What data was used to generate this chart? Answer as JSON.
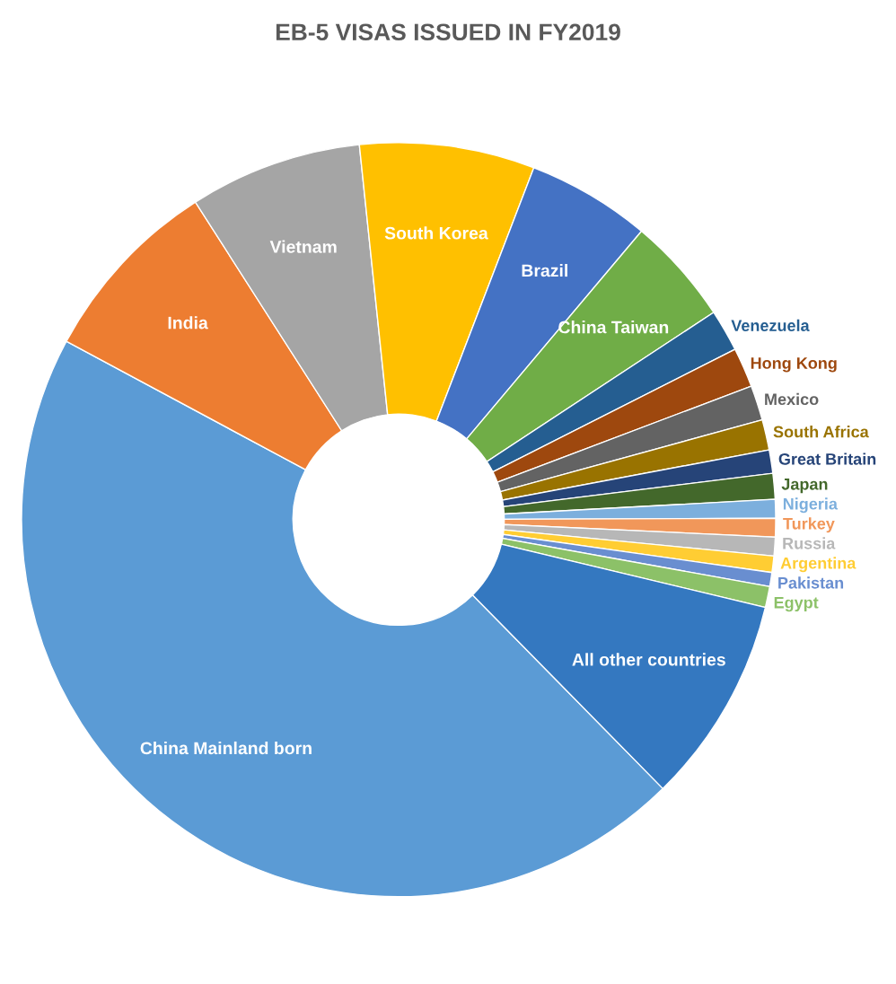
{
  "chart_data": {
    "type": "donut",
    "title": "EB-5 VISAS ISSUED IN FY2019",
    "categories": [
      "China Mainland born",
      "India",
      "Vietnam",
      "South Korea",
      "Brazil",
      "China Taiwan",
      "Venezuela",
      "Hong Kong",
      "Mexico",
      "South Africa",
      "Great Britain",
      "Japan",
      "Nigeria",
      "Turkey",
      "Russia",
      "Argentina",
      "Pakistan",
      "Egypt",
      "All other countries"
    ],
    "values": [
      45.2,
      8.1,
      7.4,
      7.5,
      5.3,
      4.6,
      1.8,
      1.7,
      1.5,
      1.3,
      1.0,
      1.1,
      0.8,
      0.8,
      0.8,
      0.7,
      0.6,
      0.9,
      8.9
    ],
    "colors": [
      "#5b9bd5",
      "#ed7d31",
      "#a5a5a5",
      "#ffc000",
      "#4472c4",
      "#70ad47",
      "#255e91",
      "#9e480e",
      "#636363",
      "#997300",
      "#264478",
      "#43682b",
      "#7cafdd",
      "#f1975a",
      "#b7b7b7",
      "#ffcd33",
      "#698ed0",
      "#8cc168",
      "#3478c0"
    ]
  }
}
